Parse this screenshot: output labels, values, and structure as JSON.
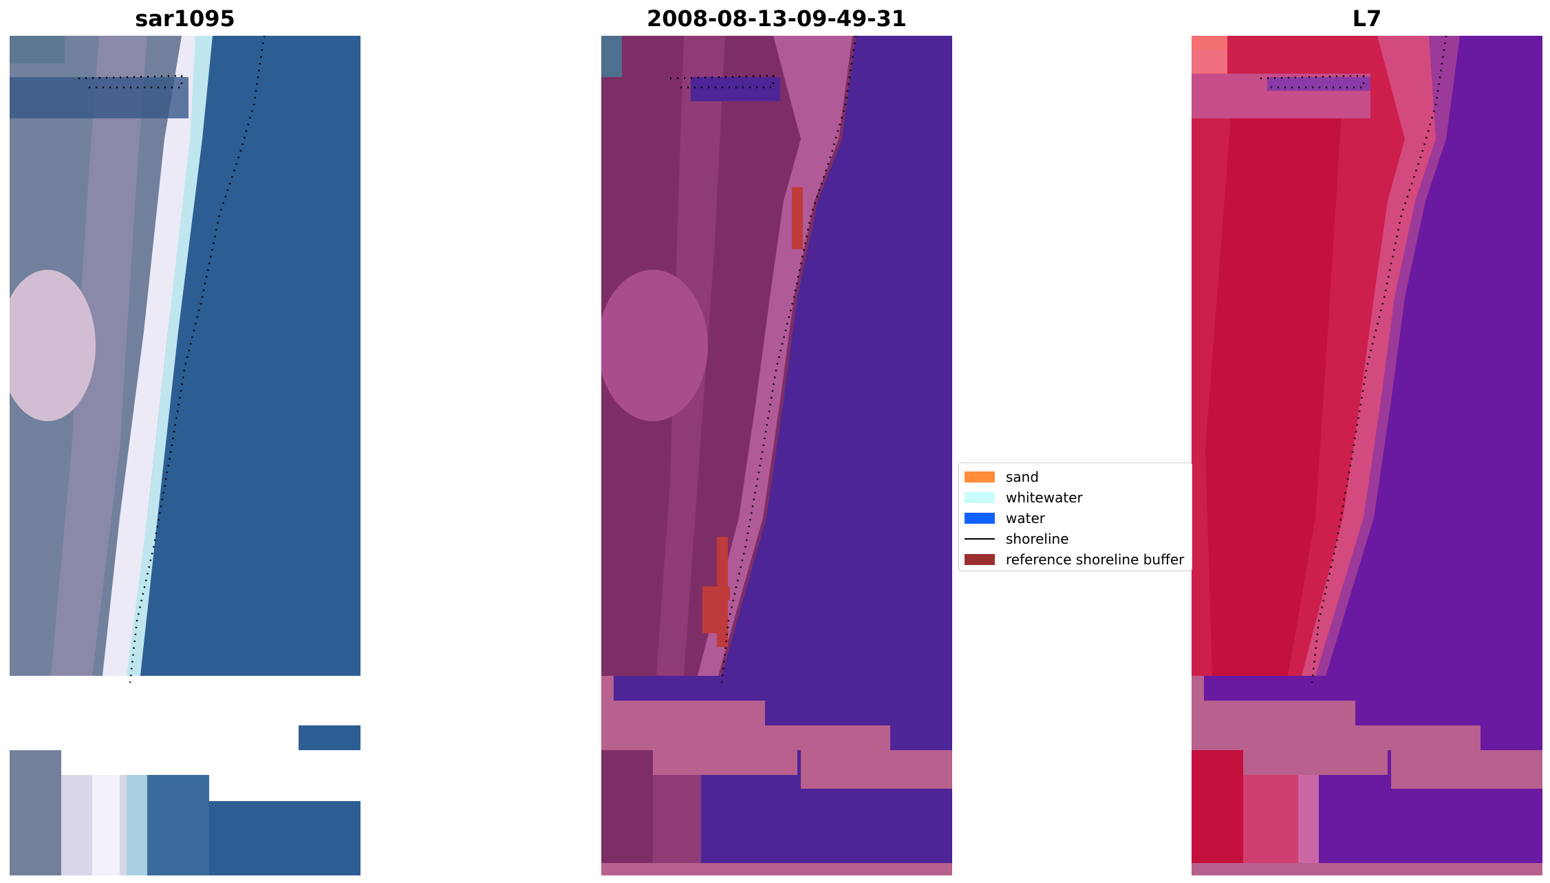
{
  "panels": [
    {
      "title": "sar1095"
    },
    {
      "title": "2008-08-13-09-49-31"
    },
    {
      "title": "L7"
    }
  ],
  "legend": {
    "items": [
      {
        "label": "sand",
        "color": "#ff8c3a",
        "kind": "patch"
      },
      {
        "label": "whitewater",
        "color": "#c8fcf8",
        "kind": "patch"
      },
      {
        "label": "water",
        "color": "#1060ff",
        "kind": "patch"
      },
      {
        "label": "shoreline",
        "color": "#000000",
        "kind": "line"
      },
      {
        "label": "reference shoreline buffer",
        "color": "#9b2f2f",
        "kind": "patch"
      }
    ]
  },
  "colors": {
    "rgb_water": "#2e5f93",
    "rgb_beach": "#f0eef8",
    "class_water": "#4d2596",
    "class_land": "#7e2e66",
    "class_buffer": "#bf3a3a",
    "class_nodata": "#b8608e",
    "mndwi_land": "#cc1f4c",
    "mndwi_water": "#6a1aa0",
    "mndwi_nodata": "#b8608e"
  }
}
